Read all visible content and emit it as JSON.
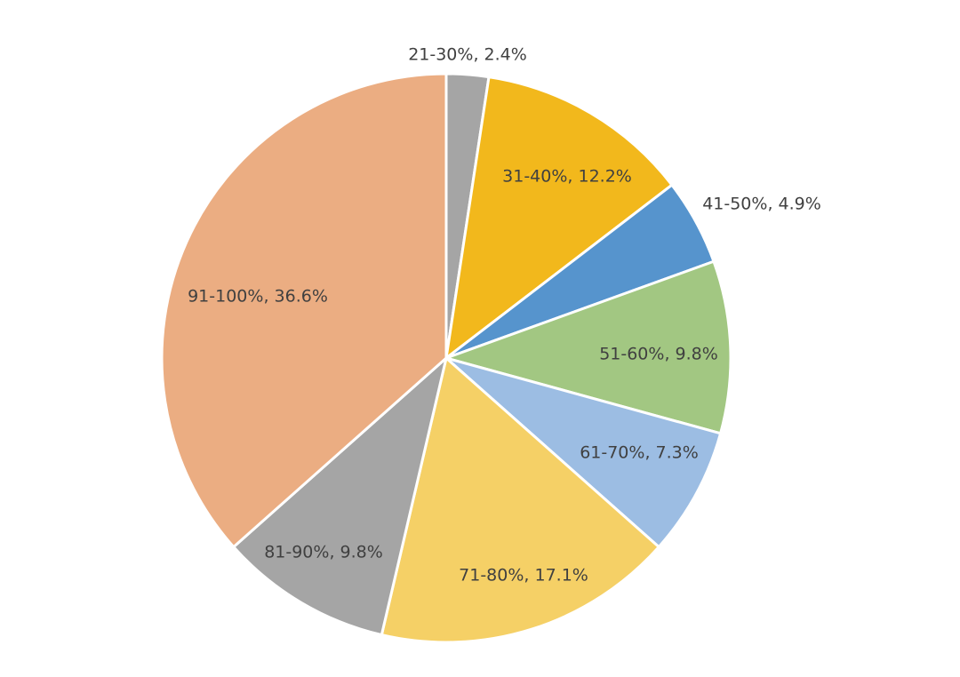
{
  "chart_data": {
    "type": "pie",
    "title": "",
    "legend": "none",
    "start_angle_deg": 0,
    "direction": "clockwise",
    "slices": [
      {
        "label": "21-30%",
        "value": 2.4,
        "display": "21-30%, 2.4%",
        "color": "#a5a5a5"
      },
      {
        "label": "31-40%",
        "value": 12.2,
        "display": "31-40%, 12.2%",
        "color": "#f2b81c"
      },
      {
        "label": "41-50%",
        "value": 4.9,
        "display": "41-50%, 4.9%",
        "color": "#5694cd"
      },
      {
        "label": "51-60%",
        "value": 9.8,
        "display": "51-60%, 9.8%",
        "color": "#a2c782"
      },
      {
        "label": "61-70%",
        "value": 7.3,
        "display": "61-70%, 7.3%",
        "color": "#9cbde3"
      },
      {
        "label": "71-80%",
        "value": 17.1,
        "display": "71-80%, 17.1%",
        "color": "#f5d066"
      },
      {
        "label": "81-90%",
        "value": 9.8,
        "display": "81-90%, 9.8%",
        "color": "#a5a5a5"
      },
      {
        "label": "91-100%",
        "value": 36.6,
        "display": "91-100%, 36.6%",
        "color": "#ebad82"
      }
    ]
  }
}
